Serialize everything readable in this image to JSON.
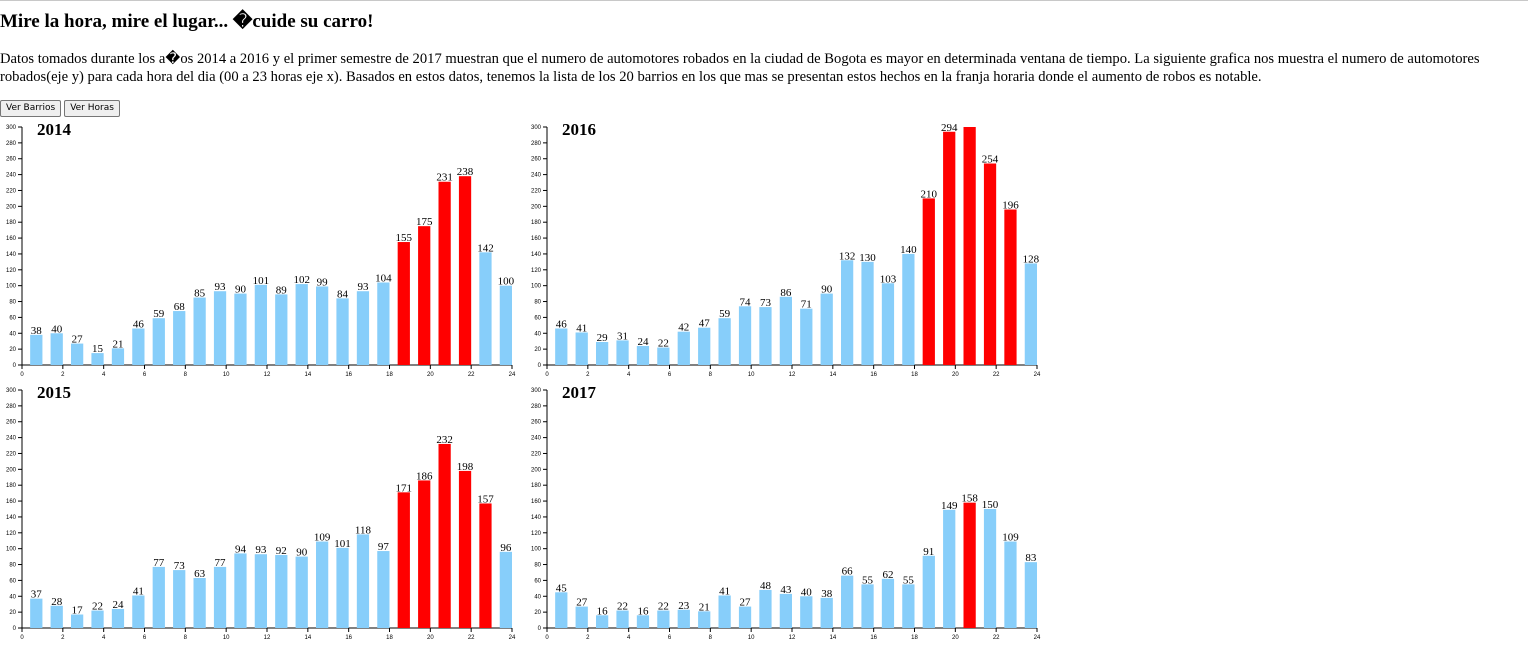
{
  "page": {
    "title": "Mire la hora, mire el lugar... �cuide su carro!",
    "description": "Datos tomados durante los a�os 2014 a 2016 y el primer semestre de 2017 muestran que el numero de automotores robados en la ciudad de Bogota es mayor en determinada ventana de tiempo. La siguiente grafica nos muestra el numero de automotores robados(eje y) para cada hora del dia (00 a 23 horas eje x). Basados en estos datos, tenemos la lista de los 20 barrios en los que mas se presentan estos hechos en la franja horaria donde el aumento de robos es notable.",
    "buttons": {
      "barrios": "Ver Barrios",
      "horas": "Ver Horas"
    }
  },
  "colors": {
    "normal": "#87cefa",
    "highlight": "#ff0000"
  },
  "chart_data": [
    {
      "type": "bar",
      "title": "2014",
      "x": [
        0,
        1,
        2,
        3,
        4,
        5,
        6,
        7,
        8,
        9,
        10,
        11,
        12,
        13,
        14,
        15,
        16,
        17,
        18,
        19,
        20,
        21,
        22,
        23
      ],
      "values": [
        38,
        40,
        27,
        15,
        21,
        46,
        59,
        68,
        85,
        93,
        90,
        101,
        89,
        102,
        99,
        84,
        93,
        104,
        155,
        175,
        231,
        238,
        142,
        100
      ],
      "highlighted_x": [
        18,
        19,
        20,
        21
      ],
      "xlim": [
        0,
        24
      ],
      "ylim": [
        0,
        300
      ],
      "xticks": [
        0,
        2,
        4,
        6,
        8,
        10,
        12,
        14,
        16,
        18,
        20,
        22,
        24
      ],
      "yticks": [
        0,
        20,
        40,
        60,
        80,
        100,
        120,
        140,
        160,
        180,
        200,
        220,
        240,
        260,
        280,
        300
      ],
      "xlabel": "",
      "ylabel": ""
    },
    {
      "type": "bar",
      "title": "2016",
      "x": [
        0,
        1,
        2,
        3,
        4,
        5,
        6,
        7,
        8,
        9,
        10,
        11,
        12,
        13,
        14,
        15,
        16,
        17,
        18,
        19,
        20,
        21,
        22,
        23
      ],
      "values": [
        46,
        41,
        29,
        31,
        24,
        22,
        42,
        47,
        59,
        74,
        73,
        86,
        71,
        90,
        132,
        130,
        103,
        140,
        210,
        294,
        313,
        254,
        196,
        128
      ],
      "labels": [
        "46",
        "41",
        "29",
        "31",
        "24",
        "22",
        "42",
        "47",
        "59",
        "74",
        "73",
        "86",
        "71",
        "90",
        "132",
        "130",
        "103",
        "140",
        "210",
        "294",
        "",
        "254",
        "196",
        "128"
      ],
      "highlighted_x": [
        18,
        19,
        20,
        21,
        22
      ],
      "xlim": [
        0,
        24
      ],
      "ylim": [
        0,
        300
      ],
      "xticks": [
        0,
        2,
        4,
        6,
        8,
        10,
        12,
        14,
        16,
        18,
        20,
        22,
        24
      ],
      "yticks": [
        0,
        20,
        40,
        60,
        80,
        100,
        120,
        140,
        160,
        180,
        200,
        220,
        240,
        260,
        280,
        300
      ],
      "xlabel": "",
      "ylabel": ""
    },
    {
      "type": "bar",
      "title": "2015",
      "x": [
        0,
        1,
        2,
        3,
        4,
        5,
        6,
        7,
        8,
        9,
        10,
        11,
        12,
        13,
        14,
        15,
        16,
        17,
        18,
        19,
        20,
        21,
        22,
        23
      ],
      "values": [
        37,
        28,
        17,
        22,
        24,
        41,
        77,
        73,
        63,
        77,
        94,
        93,
        92,
        90,
        109,
        101,
        118,
        97,
        171,
        186,
        232,
        198,
        157,
        96
      ],
      "highlighted_x": [
        18,
        19,
        20,
        21,
        22
      ],
      "xlim": [
        0,
        24
      ],
      "ylim": [
        0,
        300
      ],
      "xticks": [
        0,
        2,
        4,
        6,
        8,
        10,
        12,
        14,
        16,
        18,
        20,
        22,
        24
      ],
      "yticks": [
        0,
        20,
        40,
        60,
        80,
        100,
        120,
        140,
        160,
        180,
        200,
        220,
        240,
        260,
        280,
        300
      ],
      "xlabel": "",
      "ylabel": ""
    },
    {
      "type": "bar",
      "title": "2017",
      "x": [
        0,
        1,
        2,
        3,
        4,
        5,
        6,
        7,
        8,
        9,
        10,
        11,
        12,
        13,
        14,
        15,
        16,
        17,
        18,
        19,
        20,
        21,
        22,
        23
      ],
      "values": [
        45,
        27,
        16,
        22,
        16,
        22,
        23,
        21,
        41,
        27,
        48,
        43,
        40,
        38,
        66,
        55,
        62,
        55,
        91,
        149,
        158,
        150,
        109,
        83
      ],
      "highlighted_x": [
        20
      ],
      "xlim": [
        0,
        24
      ],
      "ylim": [
        0,
        300
      ],
      "xticks": [
        0,
        2,
        4,
        6,
        8,
        10,
        12,
        14,
        16,
        18,
        20,
        22,
        24
      ],
      "yticks": [
        0,
        20,
        40,
        60,
        80,
        100,
        120,
        140,
        160,
        180,
        200,
        220,
        240,
        260,
        280,
        300
      ],
      "xlabel": "",
      "ylabel": ""
    }
  ]
}
